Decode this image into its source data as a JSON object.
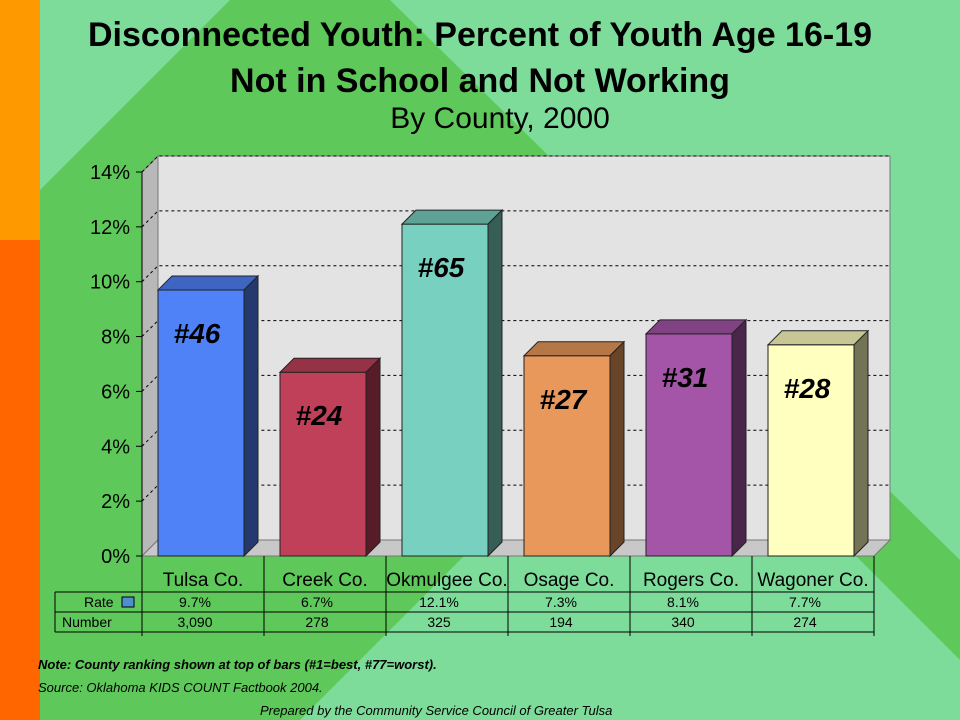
{
  "slide": {
    "title_line1": "Disconnected Youth: Percent of Youth Age 16-19",
    "title_line2": "Not in School and Not Working",
    "subtitle": "By County, 2000",
    "note": "Note: County ranking shown at top of bars (#1=best, #77=worst).",
    "source": "Source:  Oklahoma KIDS COUNT Factbook 2004.",
    "prepared": "Prepared by the Community Service Council of Greater Tulsa"
  },
  "colors": {
    "background": "#5ec85a",
    "left_stripe_top": "#ff9900",
    "left_stripe_bottom": "#ff6600",
    "plot_bg": "#e3e3e3"
  },
  "chart_data": {
    "type": "bar",
    "categories": [
      "Tulsa Co.",
      "Creek Co.",
      "Okmulgee Co.",
      "Osage Co.",
      "Rogers Co.",
      "Wagoner Co."
    ],
    "series": [
      {
        "name": "Rate",
        "values": [
          9.7,
          6.7,
          12.1,
          7.3,
          8.1,
          7.7
        ]
      }
    ],
    "ranks": [
      "#46",
      "#24",
      "#65",
      "#27",
      "#31",
      "#28"
    ],
    "bar_colors": [
      "#4f81f7",
      "#c0405a",
      "#78d0c0",
      "#e8985a",
      "#a455a8",
      "#ffffc0"
    ],
    "ylim": [
      0,
      14
    ],
    "yticks": [
      "0%",
      "2%",
      "4%",
      "6%",
      "8%",
      "10%",
      "12%",
      "14%"
    ],
    "grid": true,
    "table": {
      "rows": [
        {
          "label": "Rate",
          "values": [
            "9.7%",
            "6.7%",
            "12.1%",
            "7.3%",
            "8.1%",
            "7.7%"
          ]
        },
        {
          "label": "Number",
          "values": [
            "3,090",
            "278",
            "325",
            "194",
            "340",
            "274"
          ]
        }
      ]
    }
  }
}
